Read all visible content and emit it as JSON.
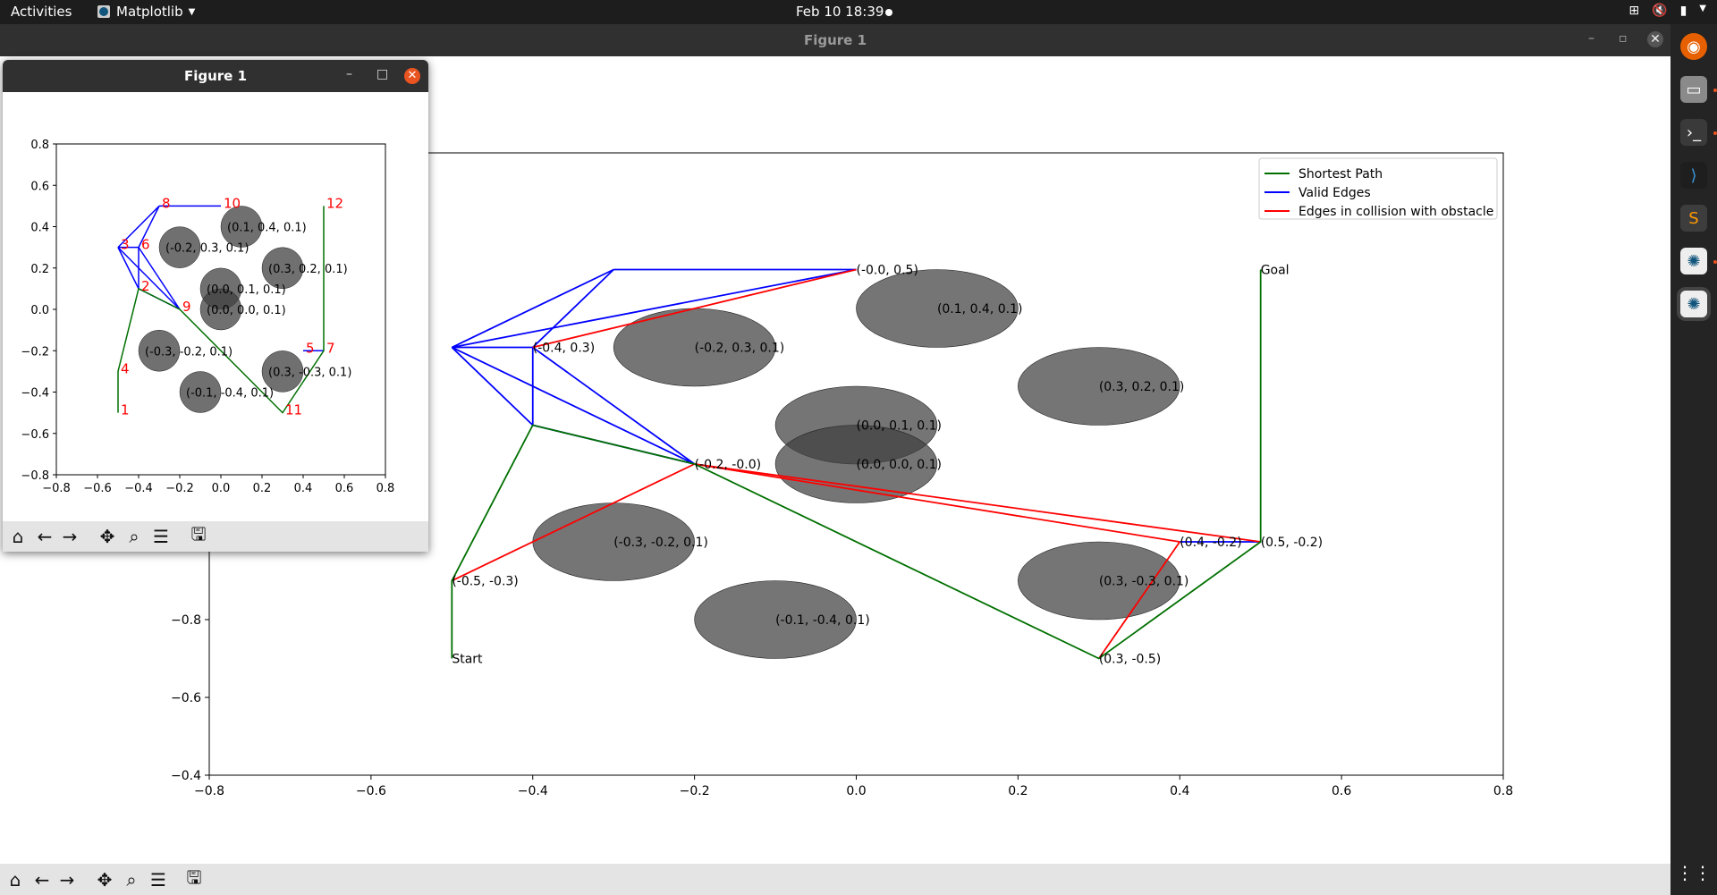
{
  "topbar": {
    "activities": "Activities",
    "app_name": "Matplotlib",
    "clock": "Feb 10  18:39"
  },
  "main_window": {
    "title": "Figure 1"
  },
  "figure_window": {
    "title": "Figure 1"
  },
  "toolbar_buttons": [
    "home-icon",
    "back-arrow-icon",
    "forward-arrow-icon",
    "pan-icon",
    "zoom-icon",
    "configure-subplots-icon",
    "save-icon"
  ],
  "dock_apps": [
    "firefox-icon",
    "files-icon",
    "terminal-icon",
    "vscode-icon",
    "sublime-text-icon",
    "matplotlib-figure-icon",
    "matplotlib-figure-icon"
  ],
  "colors": {
    "path": "#007000",
    "valid": "#0000ff",
    "collision": "#ff0000",
    "obstacle": "#404040",
    "node_label_small": "#ff0000"
  },
  "chart_data": [
    {
      "type": "scatter",
      "title": "",
      "xlabel": "",
      "ylabel": "",
      "xlim": [
        -0.8,
        0.8
      ],
      "ylim": [
        -0.8,
        0.8
      ],
      "xticks": [
        "−0.8",
        "−0.6",
        "−0.4",
        "−0.2",
        "0.0",
        "0.2",
        "0.4",
        "0.6",
        "0.8"
      ],
      "yticks": [
        "−0.8",
        "−0.6",
        "−0.4"
      ],
      "legend": {
        "placement": "top-right",
        "entries": [
          {
            "label": "Shortest Path",
            "color": "#007000"
          },
          {
            "label": "Valid Edges",
            "color": "#0000ff"
          },
          {
            "label": "Edges in collision with obstacle",
            "color": "#ff0000"
          }
        ]
      },
      "obstacles": [
        {
          "x": 0.1,
          "y": 0.4,
          "r": 0.1,
          "label": "(0.1, 0.4, 0.1)"
        },
        {
          "x": -0.2,
          "y": 0.3,
          "r": 0.1,
          "label": "(-0.2, 0.3, 0.1)"
        },
        {
          "x": 0.3,
          "y": 0.2,
          "r": 0.1,
          "label": "(0.3, 0.2, 0.1)"
        },
        {
          "x": 0.0,
          "y": 0.1,
          "r": 0.1,
          "label": "(0.0, 0.1, 0.1)"
        },
        {
          "x": 0.0,
          "y": 0.0,
          "r": 0.1,
          "label": "(0.0, 0.0, 0.1)"
        },
        {
          "x": -0.3,
          "y": -0.2,
          "r": 0.1,
          "label": "(-0.3, -0.2, 0.1)"
        },
        {
          "x": 0.3,
          "y": -0.3,
          "r": 0.1,
          "label": "(0.3, -0.3, 0.1)"
        },
        {
          "x": -0.1,
          "y": -0.4,
          "r": 0.1,
          "label": "(-0.1, -0.4, 0.1)"
        }
      ],
      "nodes": [
        {
          "x": -0.5,
          "y": -0.5,
          "label": "Start"
        },
        {
          "x": -0.5,
          "y": -0.3,
          "label": "(-0.5, -0.3)"
        },
        {
          "x": -0.4,
          "y": 0.3,
          "label": "(-0.4, 0.3)"
        },
        {
          "x": -0.2,
          "y": 0.0,
          "label": "(-0.2, -0.0)"
        },
        {
          "x": 0.0,
          "y": 0.5,
          "label": "(-0.0, 0.5)"
        },
        {
          "x": 0.4,
          "y": -0.2,
          "label": "(0.4, -0.2)"
        },
        {
          "x": 0.5,
          "y": -0.2,
          "label": "(0.5, -0.2)"
        },
        {
          "x": 0.3,
          "y": -0.5,
          "label": "(0.3, -0.5)"
        },
        {
          "x": 0.5,
          "y": 0.5,
          "label": "Goal"
        }
      ],
      "valid_edges": [
        [
          [
            -0.5,
            0.3
          ],
          [
            -0.3,
            0.5
          ]
        ],
        [
          [
            -0.5,
            0.3
          ],
          [
            0.0,
            0.5
          ]
        ],
        [
          [
            -0.5,
            0.3
          ],
          [
            -0.4,
            0.3
          ]
        ],
        [
          [
            -0.5,
            0.3
          ],
          [
            -0.4,
            0.1
          ]
        ],
        [
          [
            -0.5,
            0.3
          ],
          [
            -0.2,
            0.0
          ]
        ],
        [
          [
            -0.3,
            0.5
          ],
          [
            0.0,
            0.5
          ]
        ],
        [
          [
            -0.3,
            0.5
          ],
          [
            -0.4,
            0.3
          ]
        ],
        [
          [
            -0.4,
            0.3
          ],
          [
            -0.4,
            0.1
          ]
        ],
        [
          [
            -0.4,
            0.3
          ],
          [
            -0.2,
            0.0
          ]
        ],
        [
          [
            -0.4,
            0.1
          ],
          [
            -0.2,
            0.0
          ]
        ],
        [
          [
            0.4,
            -0.2
          ],
          [
            0.5,
            -0.2
          ]
        ]
      ],
      "collision_edges": [
        [
          [
            -0.4,
            0.3
          ],
          [
            0.0,
            0.5
          ]
        ],
        [
          [
            -0.5,
            -0.3
          ],
          [
            -0.2,
            0.0
          ]
        ],
        [
          [
            -0.2,
            0.0
          ],
          [
            0.4,
            -0.2
          ]
        ],
        [
          [
            -0.2,
            0.0
          ],
          [
            0.5,
            -0.2
          ]
        ],
        [
          [
            0.3,
            -0.5
          ],
          [
            0.4,
            -0.2
          ]
        ]
      ],
      "shortest_path": [
        [
          -0.5,
          -0.5
        ],
        [
          -0.5,
          -0.3
        ],
        [
          -0.4,
          0.1
        ],
        [
          -0.2,
          0.0
        ],
        [
          0.3,
          -0.5
        ],
        [
          0.5,
          -0.2
        ],
        [
          0.5,
          0.5
        ]
      ]
    },
    {
      "type": "scatter",
      "title": "",
      "xlim": [
        -0.8,
        0.8
      ],
      "ylim": [
        -0.8,
        0.8
      ],
      "xticks": [
        "−0.8",
        "−0.6",
        "−0.4",
        "−0.2",
        "0.0",
        "0.2",
        "0.4",
        "0.6",
        "0.8"
      ],
      "yticks": [
        "0.8",
        "0.6",
        "0.4",
        "0.2",
        "0.0",
        "−0.2",
        "−0.4",
        "−0.6",
        "−0.8"
      ],
      "obstacles": [
        {
          "x": 0.1,
          "y": 0.4,
          "r": 0.1,
          "label": "(0.1, 0.4, 0.1)"
        },
        {
          "x": -0.2,
          "y": 0.3,
          "r": 0.1,
          "label": "(-0.2, 0.3, 0.1)"
        },
        {
          "x": 0.3,
          "y": 0.2,
          "r": 0.1,
          "label": "(0.3, 0.2, 0.1)"
        },
        {
          "x": 0.0,
          "y": 0.1,
          "r": 0.1,
          "label": "(0.0, 0.1, 0.1)"
        },
        {
          "x": 0.0,
          "y": 0.0,
          "r": 0.1,
          "label": "(0.0, 0.0, 0.1)"
        },
        {
          "x": -0.3,
          "y": -0.2,
          "r": 0.1,
          "label": "(-0.3, -0.2, 0.1)"
        },
        {
          "x": 0.3,
          "y": -0.3,
          "r": 0.1,
          "label": "(0.3, -0.3, 0.1)"
        },
        {
          "x": -0.1,
          "y": -0.4,
          "r": 0.1,
          "label": "(-0.1, -0.4, 0.1)"
        }
      ],
      "node_labels": [
        {
          "x": -0.5,
          "y": -0.5,
          "label": "1"
        },
        {
          "x": -0.4,
          "y": 0.1,
          "label": "2"
        },
        {
          "x": -0.5,
          "y": 0.3,
          "label": "3"
        },
        {
          "x": -0.5,
          "y": -0.3,
          "label": "4"
        },
        {
          "x": 0.4,
          "y": -0.2,
          "label": "5"
        },
        {
          "x": -0.4,
          "y": 0.3,
          "label": "6"
        },
        {
          "x": 0.5,
          "y": -0.2,
          "label": "7"
        },
        {
          "x": -0.3,
          "y": 0.5,
          "label": "8"
        },
        {
          "x": -0.2,
          "y": 0.0,
          "label": "9"
        },
        {
          "x": 0.0,
          "y": 0.5,
          "label": "10"
        },
        {
          "x": 0.3,
          "y": -0.5,
          "label": "11"
        },
        {
          "x": 0.5,
          "y": 0.5,
          "label": "12"
        }
      ],
      "valid_edges": [
        [
          [
            -0.5,
            0.3
          ],
          [
            -0.3,
            0.5
          ]
        ],
        [
          [
            -0.3,
            0.5
          ],
          [
            0.0,
            0.5
          ]
        ],
        [
          [
            -0.5,
            0.3
          ],
          [
            -0.4,
            0.3
          ]
        ],
        [
          [
            -0.5,
            0.3
          ],
          [
            -0.4,
            0.1
          ]
        ],
        [
          [
            -0.5,
            0.3
          ],
          [
            -0.2,
            0.0
          ]
        ],
        [
          [
            -0.4,
            0.3
          ],
          [
            -0.2,
            0.0
          ]
        ],
        [
          [
            -0.4,
            0.3
          ],
          [
            -0.3,
            0.5
          ]
        ],
        [
          [
            -0.4,
            0.3
          ],
          [
            -0.4,
            0.1
          ]
        ],
        [
          [
            -0.4,
            0.1
          ],
          [
            -0.2,
            0.0
          ]
        ],
        [
          [
            0.4,
            -0.2
          ],
          [
            0.5,
            -0.2
          ]
        ]
      ],
      "shortest_path": [
        [
          -0.5,
          -0.5
        ],
        [
          -0.5,
          -0.3
        ],
        [
          -0.4,
          0.1
        ],
        [
          -0.2,
          0.0
        ],
        [
          0.3,
          -0.5
        ],
        [
          0.5,
          -0.2
        ],
        [
          0.5,
          0.5
        ]
      ]
    }
  ]
}
